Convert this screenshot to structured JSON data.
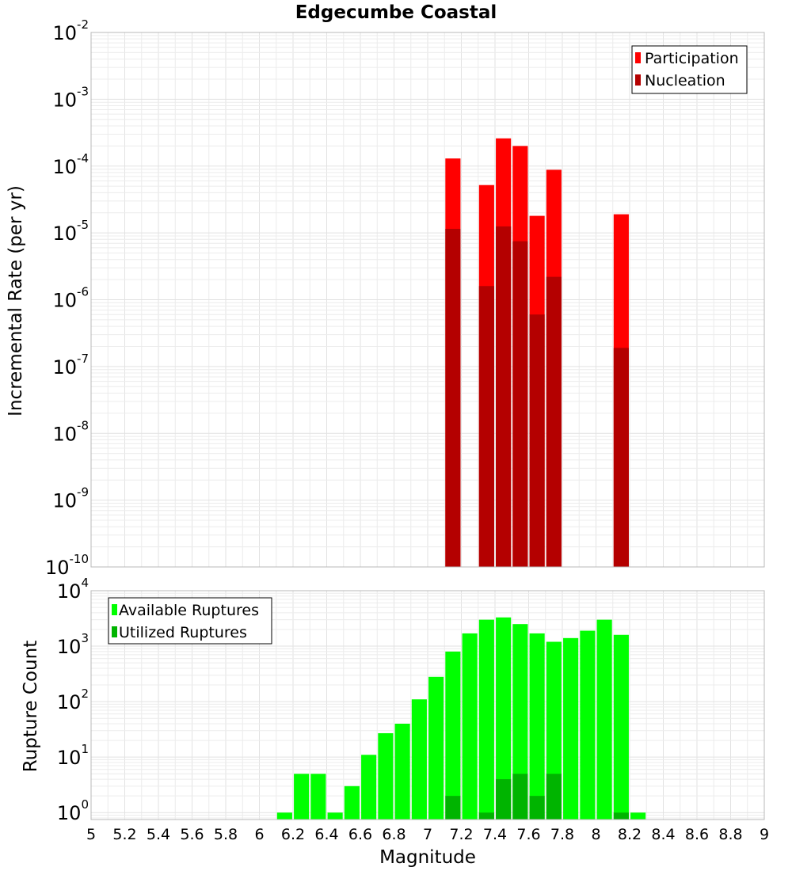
{
  "chart_data": [
    {
      "type": "bar",
      "title": "Edgecumbe Coastal",
      "xlabel": "",
      "ylabel": "Incremental Rate (per yr)",
      "yscale": "log",
      "xlim": [
        5,
        9
      ],
      "ylim": [
        1e-10,
        0.01
      ],
      "y_exponents": [
        -10,
        -9,
        -8,
        -7,
        -6,
        -5,
        -4,
        -3,
        -2
      ],
      "bar_width": 0.09,
      "grid": true,
      "legend_position": "top-right",
      "series": [
        {
          "name": "Participation",
          "color": "#ff0000",
          "x": [
            7.15,
            7.35,
            7.45,
            7.55,
            7.65,
            7.75,
            8.15
          ],
          "values": [
            0.00013,
            5.2e-05,
            0.00026,
            0.0002,
            1.8e-05,
            8.8e-05,
            1.9e-05
          ]
        },
        {
          "name": "Nucleation",
          "color": "#b40000",
          "x": [
            7.15,
            7.35,
            7.45,
            7.55,
            7.65,
            7.75,
            8.15
          ],
          "values": [
            1.15e-05,
            1.6e-06,
            1.25e-05,
            7.5e-06,
            6e-07,
            2.2e-06,
            1.9e-07
          ]
        }
      ]
    },
    {
      "type": "bar",
      "title": "",
      "xlabel": "Magnitude",
      "ylabel": "Rupture Count",
      "yscale": "log",
      "xlim": [
        5,
        9
      ],
      "ylim": [
        0.75,
        10000
      ],
      "y_exponents": [
        0,
        1,
        2,
        3,
        4
      ],
      "x_ticks": [
        "5",
        "5.2",
        "5.4",
        "5.6",
        "5.8",
        "6",
        "6.2",
        "6.4",
        "6.6",
        "6.8",
        "7",
        "7.2",
        "7.4",
        "7.6",
        "7.8",
        "8",
        "8.2",
        "8.4",
        "8.6",
        "8.8",
        "9"
      ],
      "bar_width": 0.09,
      "grid": true,
      "legend_position": "top-left",
      "series": [
        {
          "name": "Available Ruptures",
          "color": "#00ff00",
          "x": [
            6.15,
            6.25,
            6.35,
            6.45,
            6.55,
            6.65,
            6.75,
            6.85,
            6.95,
            7.05,
            7.15,
            7.25,
            7.35,
            7.45,
            7.55,
            7.65,
            7.75,
            7.85,
            7.95,
            8.05,
            8.15,
            8.25
          ],
          "values": [
            1,
            5,
            5,
            1,
            3,
            11,
            27,
            40,
            110,
            280,
            800,
            1700,
            3000,
            3300,
            2500,
            1700,
            1200,
            1400,
            1900,
            3000,
            1600,
            1
          ]
        },
        {
          "name": "Utilized Ruptures",
          "color": "#00b400",
          "x": [
            7.15,
            7.35,
            7.45,
            7.55,
            7.65,
            7.75,
            8.15
          ],
          "values": [
            2,
            1,
            4,
            5,
            2,
            5,
            1
          ]
        }
      ]
    }
  ]
}
